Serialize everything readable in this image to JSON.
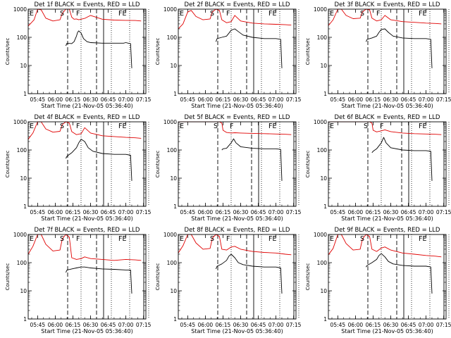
{
  "figure": {
    "x_label": "Start Time (21-Nov-05 05:36:40)",
    "y_label": "Counts/sec"
  },
  "colors": {
    "events": "#000000",
    "lld": "#e00000",
    "axes": "#000000"
  },
  "chart_data": [
    {
      "type": "line",
      "title": "Det 1f BLACK = Events, RED = LLD",
      "xlim": [
        "05:37",
        "07:17"
      ],
      "ylim": [
        1,
        1000
      ],
      "yscale": "log",
      "x_ticks": [
        "05:45",
        "06:00",
        "06:15",
        "06:30",
        "06:45",
        "07:00",
        "07:15"
      ],
      "y_ticks": [
        "1",
        "10",
        "100",
        "1000"
      ],
      "markers": [
        "E",
        "S",
        "F",
        "FE"
      ],
      "series": [
        {
          "x": [
            "05:37",
            "05:42",
            "05:45",
            "05:48",
            "05:52",
            "05:58",
            "06:04",
            "06:06",
            "06:09",
            "06:12",
            "06:14",
            "06:16",
            "06:18",
            "06:20",
            "06:25",
            "06:30",
            "06:40",
            "06:50",
            "07:00",
            "07:08",
            "07:13"
          ],
          "values": [
            250,
            420,
            1000,
            950,
            480,
            380,
            420,
            700,
            1000,
            1000,
            520,
            440,
            450,
            420,
            470,
            600,
            440,
            410,
            400,
            395,
            380
          ]
        },
        {
          "x": [
            "06:09",
            "06:10",
            "06:14",
            "06:16",
            "06:18",
            "06:19",
            "06:20",
            "06:22",
            "06:24",
            "06:27",
            "06:30",
            "06:40",
            "06:50",
            "06:58",
            "07:00",
            "07:02",
            "07:04",
            "07:05"
          ],
          "values": [
            50,
            62,
            60,
            70,
            110,
            150,
            170,
            140,
            90,
            70,
            65,
            62,
            62,
            62,
            65,
            62,
            60,
            8
          ]
        }
      ]
    },
    {
      "type": "line",
      "title": "Det 2f BLACK = Events, RED = LLD",
      "xlim": [
        "05:37",
        "07:17"
      ],
      "ylim": [
        1,
        1000
      ],
      "yscale": "log",
      "x_ticks": [
        "05:45",
        "06:00",
        "06:15",
        "06:30",
        "06:45",
        "07:00",
        "07:15"
      ],
      "y_ticks": [
        "1",
        "10",
        "100",
        "1000"
      ],
      "markers": [
        "E",
        "S",
        "F",
        "FE"
      ],
      "series": [
        {
          "x": [
            "05:37",
            "05:41",
            "05:45",
            "05:48",
            "05:52",
            "05:58",
            "06:04",
            "06:06",
            "06:09",
            "06:12",
            "06:14",
            "06:18",
            "06:22",
            "06:25",
            "06:30",
            "06:40",
            "06:50",
            "07:00",
            "07:08",
            "07:13"
          ],
          "values": [
            200,
            300,
            800,
            900,
            550,
            420,
            450,
            800,
            1000,
            900,
            420,
            330,
            360,
            600,
            380,
            320,
            300,
            290,
            280,
            270
          ]
        },
        {
          "x": [
            "06:09",
            "06:10",
            "06:14",
            "06:18",
            "06:20",
            "06:22",
            "06:25",
            "06:28",
            "06:32",
            "06:40",
            "06:50",
            "07:00",
            "07:04",
            "07:05"
          ],
          "values": [
            70,
            90,
            100,
            110,
            140,
            180,
            200,
            160,
            120,
            100,
            90,
            90,
            85,
            8
          ]
        }
      ]
    },
    {
      "type": "line",
      "title": "Det 3f BLACK = Events, RED = LLD",
      "xlim": [
        "05:37",
        "07:17"
      ],
      "ylim": [
        1,
        1000
      ],
      "yscale": "log",
      "x_ticks": [
        "05:45",
        "06:00",
        "06:15",
        "06:30",
        "06:45",
        "07:00",
        "07:15"
      ],
      "y_ticks": [
        "1",
        "10",
        "100",
        "1000"
      ],
      "markers": [
        "E",
        "S",
        "F",
        "FE"
      ],
      "series": [
        {
          "x": [
            "05:37",
            "05:41",
            "05:45",
            "05:48",
            "05:52",
            "05:58",
            "06:04",
            "06:06",
            "06:09",
            "06:12",
            "06:14",
            "06:18",
            "06:22",
            "06:25",
            "06:30",
            "06:40",
            "06:50",
            "07:00",
            "07:08",
            "07:13"
          ],
          "values": [
            260,
            420,
            1000,
            1000,
            600,
            460,
            480,
            800,
            1000,
            950,
            480,
            380,
            420,
            600,
            420,
            360,
            340,
            320,
            310,
            300
          ]
        },
        {
          "x": [
            "06:09",
            "06:10",
            "06:14",
            "06:18",
            "06:20",
            "06:22",
            "06:25",
            "06:28",
            "06:32",
            "06:40",
            "06:50",
            "07:00",
            "07:04",
            "07:05"
          ],
          "values": [
            70,
            85,
            95,
            110,
            150,
            190,
            200,
            150,
            110,
            95,
            90,
            90,
            85,
            8
          ]
        }
      ]
    },
    {
      "type": "line",
      "title": "Det 4f BLACK = Events, RED = LLD",
      "xlim": [
        "05:37",
        "07:17"
      ],
      "ylim": [
        1,
        1000
      ],
      "yscale": "log",
      "x_ticks": [
        "05:45",
        "06:00",
        "06:15",
        "06:30",
        "06:45",
        "07:00",
        "07:15"
      ],
      "y_ticks": [
        "1",
        "10",
        "100",
        "1000"
      ],
      "markers": [
        "E",
        "S",
        "F",
        "FE"
      ],
      "series": [
        {
          "x": [
            "05:37",
            "05:41",
            "05:45",
            "05:48",
            "05:52",
            "05:58",
            "06:04",
            "06:06",
            "06:09",
            "06:12",
            "06:14",
            "06:18",
            "06:22",
            "06:25",
            "06:30",
            "06:40",
            "06:50",
            "07:00",
            "07:08",
            "07:13"
          ],
          "values": [
            240,
            400,
            1000,
            1000,
            560,
            430,
            460,
            800,
            1000,
            900,
            450,
            350,
            380,
            620,
            400,
            320,
            300,
            280,
            270,
            260
          ]
        },
        {
          "x": [
            "06:09",
            "06:10",
            "06:14",
            "06:18",
            "06:20",
            "06:22",
            "06:25",
            "06:28",
            "06:32",
            "06:40",
            "06:50",
            "07:00",
            "07:04",
            "07:05"
          ],
          "values": [
            50,
            60,
            80,
            120,
            180,
            240,
            200,
            120,
            90,
            75,
            70,
            70,
            65,
            8
          ]
        }
      ]
    },
    {
      "type": "line",
      "title": "Det 5f BLACK = Events, RED = LLD",
      "xlim": [
        "05:37",
        "07:17"
      ],
      "ylim": [
        1,
        1000
      ],
      "yscale": "log",
      "x_ticks": [
        "05:45",
        "06:00",
        "06:15",
        "06:30",
        "06:45",
        "07:00",
        "07:15"
      ],
      "y_ticks": [
        "1",
        "10",
        "100",
        "1000"
      ],
      "markers": [
        "E",
        "S",
        "F",
        "FE"
      ],
      "series": [
        {
          "x": [
            "05:37",
            "05:41",
            "05:44",
            "05:48",
            "05:55",
            "06:05",
            "06:12",
            "06:14",
            "06:15",
            "06:18",
            "06:22",
            "06:25",
            "06:30",
            "06:40",
            "06:50",
            "07:00",
            "07:08",
            "07:13"
          ],
          "values": [
            1000,
            1000,
            1000,
            1000,
            1000,
            1000,
            1000,
            900,
            500,
            420,
            400,
            410,
            400,
            390,
            380,
            370,
            360,
            350
          ]
        },
        {
          "x": [
            "06:14",
            "06:15",
            "06:18",
            "06:22",
            "06:24",
            "06:26",
            "06:30",
            "06:40",
            "06:50",
            "07:00",
            "07:04",
            "07:05"
          ],
          "values": [
            100,
            110,
            115,
            180,
            250,
            180,
            130,
            115,
            110,
            110,
            105,
            8
          ]
        }
      ]
    },
    {
      "type": "line",
      "title": "Det 6f BLACK = Events, RED = LLD",
      "xlim": [
        "05:37",
        "07:17"
      ],
      "ylim": [
        1,
        1000
      ],
      "yscale": "log",
      "x_ticks": [
        "05:45",
        "06:00",
        "06:15",
        "06:30",
        "06:45",
        "07:00",
        "07:15"
      ],
      "y_ticks": [
        "1",
        "10",
        "100",
        "1000"
      ],
      "markers": [
        "E",
        "S",
        "F",
        "FE"
      ],
      "series": [
        {
          "x": [
            "05:37",
            "05:41",
            "05:44",
            "05:48",
            "05:55",
            "06:05",
            "06:12",
            "06:14",
            "06:15",
            "06:18",
            "06:22",
            "06:25",
            "06:30",
            "06:40",
            "06:50",
            "07:00",
            "07:08",
            "07:13"
          ],
          "values": [
            1000,
            1000,
            1000,
            1000,
            1000,
            1000,
            1000,
            900,
            500,
            440,
            480,
            520,
            450,
            400,
            380,
            370,
            360,
            350
          ]
        },
        {
          "x": [
            "06:14",
            "06:15",
            "06:18",
            "06:22",
            "06:24",
            "06:26",
            "06:30",
            "06:40",
            "06:50",
            "07:00",
            "07:04",
            "07:05"
          ],
          "values": [
            80,
            90,
            110,
            180,
            280,
            180,
            120,
            100,
            95,
            95,
            90,
            8
          ]
        }
      ]
    },
    {
      "type": "line",
      "title": "Det 7f BLACK = Events, RED = LLD",
      "xlim": [
        "05:37",
        "07:17"
      ],
      "ylim": [
        1,
        1000
      ],
      "yscale": "log",
      "x_ticks": [
        "05:45",
        "06:00",
        "06:15",
        "06:30",
        "06:45",
        "07:00",
        "07:15"
      ],
      "y_ticks": [
        "1",
        "10",
        "100",
        "1000"
      ],
      "markers": [
        "E",
        "S",
        "F",
        "FE"
      ],
      "series": [
        {
          "x": [
            "05:37",
            "05:41",
            "05:45",
            "05:48",
            "05:52",
            "05:58",
            "06:04",
            "06:06",
            "06:09",
            "06:12",
            "06:14",
            "06:18",
            "06:22",
            "06:25",
            "06:30",
            "06:40",
            "06:50",
            "07:00",
            "07:08",
            "07:13"
          ],
          "values": [
            200,
            380,
            1000,
            1000,
            450,
            260,
            280,
            700,
            1000,
            800,
            150,
            130,
            140,
            160,
            140,
            130,
            120,
            130,
            125,
            120
          ]
        },
        {
          "x": [
            "06:09",
            "06:10",
            "06:14",
            "06:18",
            "06:22",
            "06:25",
            "06:30",
            "06:40",
            "06:50",
            "07:00",
            "07:04",
            "07:05"
          ],
          "values": [
            45,
            55,
            60,
            65,
            70,
            70,
            65,
            60,
            58,
            55,
            55,
            8
          ]
        }
      ]
    },
    {
      "type": "line",
      "title": "Det 8f BLACK = Events, RED = LLD",
      "xlim": [
        "05:37",
        "07:17"
      ],
      "ylim": [
        1,
        1000
      ],
      "yscale": "log",
      "x_ticks": [
        "05:45",
        "06:00",
        "06:15",
        "06:30",
        "06:45",
        "07:00",
        "07:15"
      ],
      "y_ticks": [
        "1",
        "10",
        "100",
        "1000"
      ],
      "markers": [
        "E",
        "S",
        "F",
        "FE"
      ],
      "series": [
        {
          "x": [
            "05:37",
            "05:41",
            "05:45",
            "05:48",
            "05:52",
            "05:58",
            "06:04",
            "06:06",
            "06:09",
            "06:12",
            "06:14",
            "06:18",
            "06:22",
            "06:25",
            "06:30",
            "06:40",
            "06:50",
            "07:00",
            "07:08",
            "07:13"
          ],
          "values": [
            220,
            400,
            1000,
            1000,
            500,
            300,
            320,
            750,
            1000,
            850,
            300,
            280,
            360,
            380,
            300,
            250,
            230,
            220,
            200,
            190
          ]
        },
        {
          "x": [
            "06:09",
            "06:10",
            "06:14",
            "06:18",
            "06:20",
            "06:22",
            "06:25",
            "06:28",
            "06:32",
            "06:40",
            "06:50",
            "07:00",
            "07:04",
            "07:05"
          ],
          "values": [
            60,
            75,
            90,
            120,
            170,
            200,
            150,
            100,
            85,
            75,
            70,
            70,
            65,
            8
          ]
        }
      ]
    },
    {
      "type": "line",
      "title": "Det 9f BLACK = Events, RED = LLD",
      "xlim": [
        "05:37",
        "07:17"
      ],
      "ylim": [
        1,
        1000
      ],
      "yscale": "log",
      "x_ticks": [
        "05:45",
        "06:00",
        "06:15",
        "06:30",
        "06:45",
        "07:00",
        "07:15"
      ],
      "y_ticks": [
        "1",
        "10",
        "100",
        "1000"
      ],
      "markers": [
        "E",
        "S",
        "F",
        "FE"
      ],
      "series": [
        {
          "x": [
            "05:37",
            "05:41",
            "05:45",
            "05:48",
            "05:52",
            "05:58",
            "06:04",
            "06:06",
            "06:09",
            "06:12",
            "06:14",
            "06:18",
            "06:22",
            "06:25",
            "06:30",
            "06:40",
            "06:50",
            "07:00",
            "07:08",
            "07:13"
          ],
          "values": [
            190,
            320,
            1000,
            1000,
            480,
            280,
            300,
            700,
            1000,
            850,
            300,
            250,
            330,
            360,
            280,
            220,
            200,
            180,
            170,
            160
          ]
        },
        {
          "x": [
            "06:09",
            "06:10",
            "06:14",
            "06:18",
            "06:20",
            "06:22",
            "06:25",
            "06:28",
            "06:32",
            "06:40",
            "06:50",
            "07:00",
            "07:04",
            "07:05"
          ],
          "values": [
            70,
            80,
            100,
            130,
            180,
            210,
            160,
            110,
            90,
            80,
            75,
            75,
            70,
            8
          ]
        }
      ]
    }
  ]
}
